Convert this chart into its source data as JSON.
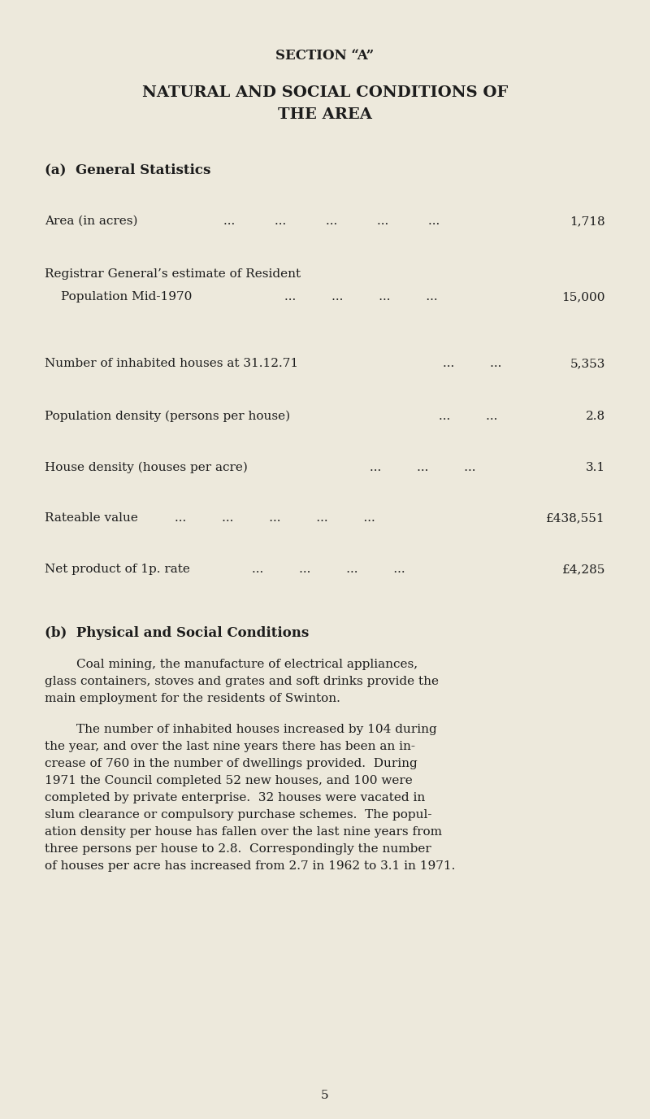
{
  "background_color": "#ede9dc",
  "text_color": "#1c1c1c",
  "page_width": 8.0,
  "page_height": 13.76,
  "section_title": "SECTION “A”",
  "main_title_line1": "NATURAL AND SOCIAL CONDITIONS OF",
  "main_title_line2": "THE AREA",
  "subtitle_a": "(a)  General Statistics",
  "subtitle_b": "(b)  Physical and Social Conditions",
  "page_number": "5",
  "section_fontsize": 12,
  "main_title_fontsize": 14,
  "subtitle_fontsize": 12,
  "stats_fontsize": 11,
  "body_fontsize": 11,
  "stat_rows": [
    {
      "line1": "Area (in acres)",
      "line1_dots": "...          ...         ...         ...         ...",
      "line2": null,
      "line2_indent": 0,
      "line2_dots": null,
      "value": "1,718",
      "value_prefix": ""
    },
    {
      "line1": "Registrar General’s estimate of Resident",
      "line1_dots": null,
      "line2": "    Population Mid-1970",
      "line2_indent": 0.03,
      "line2_dots": "...         ...         ...         ...",
      "value": "15,000",
      "value_prefix": ""
    },
    {
      "line1": "Number of inhabited houses at 31.12.71",
      "line1_dots": "...         ...",
      "line2": null,
      "line2_indent": 0,
      "line2_dots": null,
      "value": "5,353",
      "value_prefix": ""
    },
    {
      "line1": "Population density (persons per house)",
      "line1_dots": "...         ...",
      "line2": null,
      "line2_indent": 0,
      "line2_dots": null,
      "value": "2.8",
      "value_prefix": ""
    },
    {
      "line1": "House density (houses per acre)",
      "line1_dots": "...         ...         ...",
      "line2": null,
      "line2_indent": 0,
      "line2_dots": null,
      "value": "3.1",
      "value_prefix": ""
    },
    {
      "line1": "Rateable value",
      "line1_dots": "...         ...         ...         ...         ...",
      "line2": null,
      "line2_indent": 0,
      "line2_dots": null,
      "value": "£438,551",
      "value_prefix": "... "
    },
    {
      "line1": "Net product of 1p. rate",
      "line1_dots": "...         ...         ...         ...",
      "line2": null,
      "line2_indent": 0,
      "line2_dots": null,
      "value": "£4,285",
      "value_prefix": ""
    }
  ],
  "para1_lines": [
    "        Coal mining, the manufacture of electrical appliances,",
    "glass containers, stoves and grates and soft drinks provide the",
    "main employment for the residents of Swinton."
  ],
  "para2_lines": [
    "        The number of inhabited houses increased by 104 during",
    "the year, and over the last nine years there has been an in-",
    "crease of 760 in the number of dwellings provided.  During",
    "1971 the Council completed 52 new houses, and 100 were",
    "completed by private enterprise.  32 houses were vacated in",
    "slum clearance or compulsory purchase schemes.  The popul-",
    "ation density per house has fallen over the last nine years from",
    "three persons per house to 2.8.  Correspondingly the number",
    "of houses per acre has increased from 2.7 in 1962 to 3.1 in 1971."
  ]
}
